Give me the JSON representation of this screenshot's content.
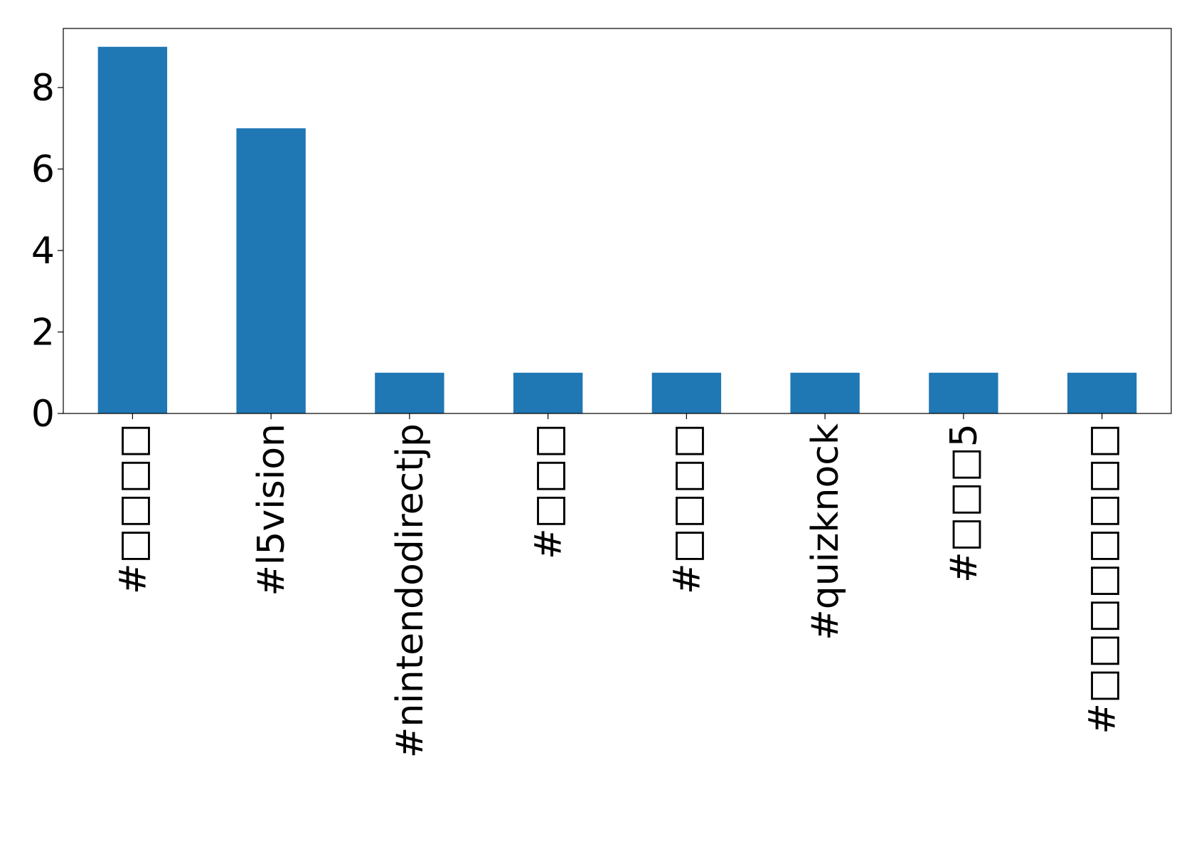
{
  "chart_data": {
    "type": "bar",
    "categories": [
      "#□□□□",
      "#l5vision",
      "#nintendodirectjp",
      "#□□□",
      "#□□□□",
      "#quizknock",
      "#□□□5",
      "#□□□□□□□□"
    ],
    "values": [
      9,
      7,
      1,
      1,
      1,
      1,
      1,
      1
    ],
    "color": "#1f77b4",
    "ylim": [
      0,
      9.45
    ],
    "yticks": [
      0,
      2,
      4,
      6,
      8
    ],
    "grid": false
  }
}
